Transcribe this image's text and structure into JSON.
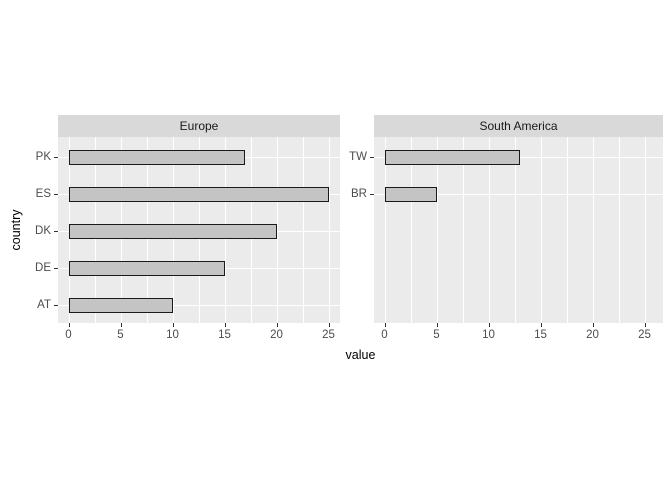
{
  "chart_data": {
    "type": "bar",
    "orientation": "horizontal",
    "title": "",
    "xlabel": "value",
    "ylabel": "country",
    "xlim": [
      0,
      25
    ],
    "x_ticks": [
      0,
      5,
      10,
      15,
      20,
      25
    ],
    "x_minor_ticks": [
      2.5,
      7.5,
      12.5,
      17.5,
      22.5
    ],
    "grid": "white major+minor vertical gridlines, white major horizontal gridlines on grey panel",
    "legend": "none",
    "facets": [
      {
        "label": "Europe",
        "categories": [
          "PK",
          "ES",
          "DK",
          "DE",
          "AT"
        ],
        "values": [
          17,
          25,
          20,
          15,
          10
        ]
      },
      {
        "label": "South America",
        "categories": [
          "TW",
          "BR"
        ],
        "values": [
          13,
          5
        ]
      }
    ],
    "colors": {
      "panel_background": "#EBEBEB",
      "strip_background": "#D9D9D9",
      "gridline": "#FFFFFF",
      "bar_fill": "#C4C4C4",
      "bar_border": "#1A1A1A",
      "axis_text": "#4D4D4D",
      "tick_mark": "#333333",
      "strip_text": "#1A1A1A",
      "axis_title": "#000000",
      "page_background": "#FFFFFF"
    }
  }
}
